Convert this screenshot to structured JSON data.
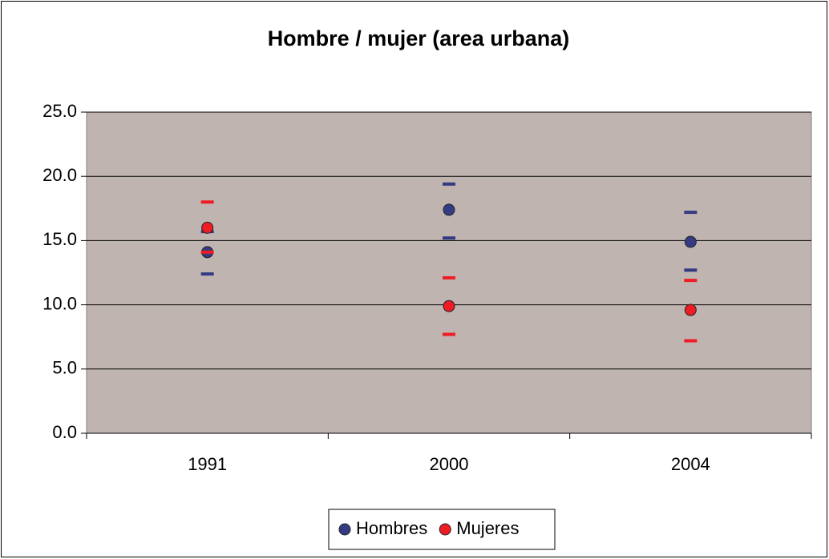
{
  "chart_data": {
    "type": "dot-interval",
    "title": "Hombre / mujer (area urbana)",
    "categories": [
      "1991",
      "2000",
      "2004"
    ],
    "series": [
      {
        "name": "Hombres",
        "color": "#343b83",
        "values": [
          14.1,
          17.4,
          14.9
        ],
        "high": [
          15.7,
          19.4,
          17.2
        ],
        "low": [
          12.4,
          15.2,
          12.7
        ]
      },
      {
        "name": "Mujeres",
        "color": "#ee1c24",
        "values": [
          16.0,
          9.9,
          9.6
        ],
        "high": [
          18.0,
          12.1,
          11.9
        ],
        "low": [
          14.1,
          7.7,
          7.2
        ]
      }
    ],
    "ylim": [
      0,
      25
    ],
    "yticks": [
      {
        "value": 0,
        "label": "0.0"
      },
      {
        "value": 5,
        "label": "5.0"
      },
      {
        "value": 10,
        "label": "10.0"
      },
      {
        "value": 15,
        "label": "15.0"
      },
      {
        "value": 20,
        "label": "20.0"
      },
      {
        "value": 25,
        "label": "25.0"
      }
    ],
    "grid": true,
    "plot_background": "#c0b4b0",
    "legend": "bottom"
  }
}
